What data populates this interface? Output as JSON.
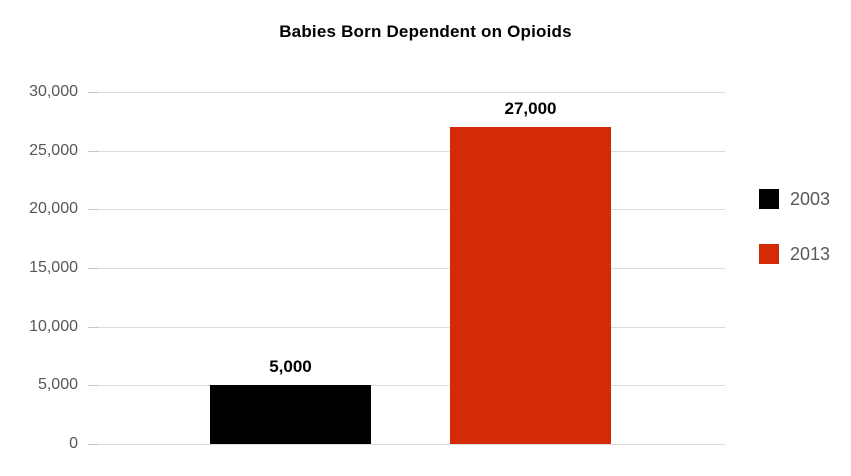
{
  "chart_data": {
    "type": "bar",
    "title": "Babies Born Dependent on Opioids",
    "categories": [
      "2003",
      "2013"
    ],
    "series": [
      {
        "name": "2003",
        "value": 5000,
        "value_label": "5,000",
        "color": "#000000"
      },
      {
        "name": "2013",
        "value": 27000,
        "value_label": "27,000",
        "color": "#d32b05"
      }
    ],
    "ylim": [
      0,
      30000
    ],
    "y_ticks": [
      {
        "value": 0,
        "label": "0"
      },
      {
        "value": 5000,
        "label": "5,000"
      },
      {
        "value": 10000,
        "label": "10,000"
      },
      {
        "value": 15000,
        "label": "15,000"
      },
      {
        "value": 20000,
        "label": "20,000"
      },
      {
        "value": 25000,
        "label": "25,000"
      },
      {
        "value": 30000,
        "label": "30,000"
      }
    ],
    "grid": true,
    "xlabel": "",
    "ylabel": "",
    "legend_position": "right",
    "legend": [
      {
        "label": "2003",
        "color": "#000000"
      },
      {
        "label": "2013",
        "color": "#d32b05"
      }
    ],
    "colors": {
      "gridline": "#dcdcdc",
      "tick": "#c7c7c7",
      "axis_label": "#565656",
      "legend_label": "#58585a",
      "title": "#000000",
      "value_label": "#000000"
    }
  }
}
